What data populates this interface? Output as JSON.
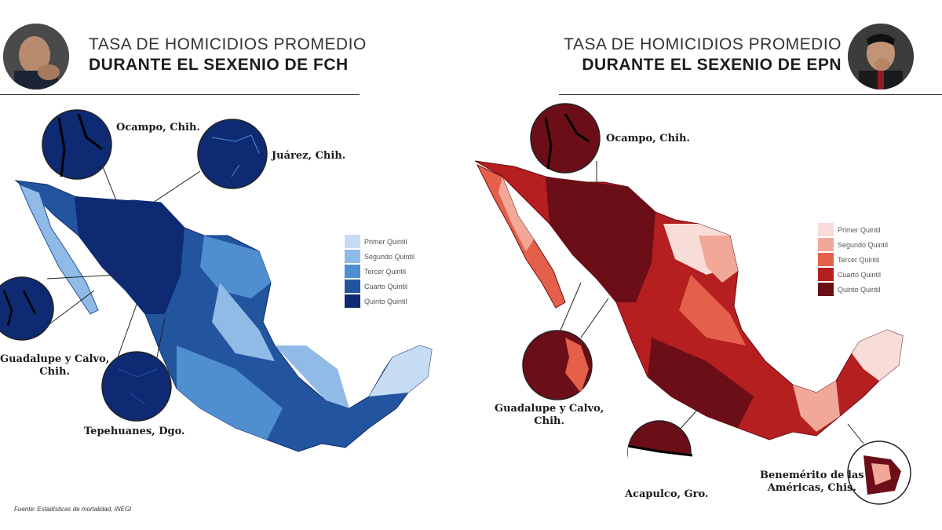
{
  "panels": {
    "left": {
      "title_line1": "TASA DE HOMICIDIOS PROMEDIO",
      "title_line2": "DURANTE EL SEXENIO DE FCH",
      "legend": [
        "Primer Quintil",
        "Segundo Quintil",
        "Tercer Quintil",
        "Cuarto Quintil",
        "Quinto Quintil"
      ],
      "colors": [
        "#c6dcf2",
        "#8fbbe6",
        "#4f8fcf",
        "#22559e",
        "#0d2a73"
      ],
      "callouts": [
        "Ocampo, Chih.",
        "Juárez, Chih.",
        "Guadalupe y Calvo,\nChih.",
        "Tepehuanes, Dgo."
      ],
      "source": "Fuente: Estadísticas de mortalidad, INEGI"
    },
    "right": {
      "title_line1": "TASA DE HOMICIDIOS PROMEDIO",
      "title_line2": "DURANTE EL SEXENIO DE EPN",
      "legend": [
        "Primer Quintil",
        "Segundo Quintil",
        "Tercer Quintil",
        "Cuarto Quintil",
        "Quinto Quintil"
      ],
      "colors": [
        "#f8dcd8",
        "#f2a898",
        "#e5604a",
        "#b51f1f",
        "#6b0e17"
      ],
      "callouts": [
        "Ocampo, Chih.",
        "Guadalupe y Calvo,\nChih.",
        "Acapulco, Gro.",
        "Benemérito de las\nAméricas, Chis."
      ]
    }
  },
  "icons": [
    "avatar-fch",
    "avatar-epn"
  ]
}
